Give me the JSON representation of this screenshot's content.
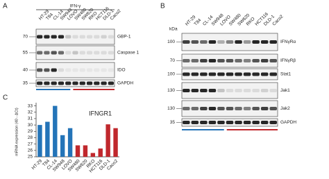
{
  "panel_a": {
    "label": "A",
    "treatment": "IFN-γ",
    "lanes": [
      "HT-29",
      "T84",
      "CL-14",
      "SW948",
      "LOVO",
      "SW480",
      "SW620",
      "RKO",
      "HCT116",
      "DLD-1",
      "Caco2"
    ],
    "blots": [
      {
        "marker": "70",
        "protein": "GBP-1"
      },
      {
        "marker": "55",
        "protein": "Caspase 1"
      },
      {
        "marker": "40",
        "protein": "IDO"
      },
      {
        "marker": "35",
        "protein": "GAPDH"
      }
    ]
  },
  "panel_b": {
    "label": "B",
    "unit": "kDa",
    "lanes": [
      "HT-29",
      "T84",
      "CL-14",
      "SW948",
      "LOVO",
      "SW480",
      "SW620",
      "RKO",
      "HCT116",
      "DLD-1",
      "Caco2"
    ],
    "blots": [
      {
        "marker": "100",
        "protein": "IFNγRα"
      },
      {
        "marker": "70",
        "protein": "IFNγRβ"
      },
      {
        "marker": "100",
        "protein": "Stat1"
      },
      {
        "marker": "130",
        "protein": "Jak1"
      },
      {
        "marker": "130",
        "protein": "Jak2"
      },
      {
        "marker": "35",
        "protein": "GAPDH"
      }
    ]
  },
  "chart_data": {
    "type": "bar",
    "panel_label": "C",
    "title": "IFNGR1",
    "y_label": "mRNA expression (40 - ΔCt)",
    "categories": [
      "HT-29",
      "T84",
      "CL-14",
      "SW948",
      "LOVO",
      "SW480",
      "SW620",
      "RKO",
      "HCT116",
      "DLD-1",
      "Caco2"
    ],
    "values": [
      30,
      30.5,
      33,
      28.4,
      29.5,
      26.8,
      26.8,
      25.6,
      26.3,
      30.1,
      29.5
    ],
    "colors": [
      "#2474b8",
      "#2474b8",
      "#2474b8",
      "#2474b8",
      "#2474b8",
      "#c0282d",
      "#c0282d",
      "#c0282d",
      "#c0282d",
      "#c0282d",
      "#c0282d"
    ],
    "ylim": [
      25,
      33.5
    ],
    "yticks": [
      25,
      26,
      27,
      28,
      29,
      30,
      31,
      32,
      33
    ]
  }
}
